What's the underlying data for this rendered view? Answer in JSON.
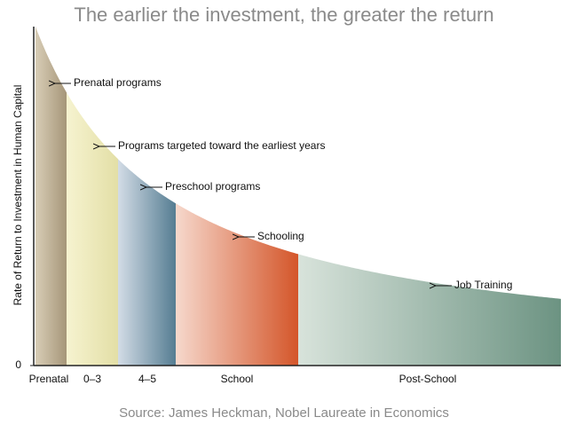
{
  "chart_data": {
    "type": "area",
    "title": "The earlier the investment, the greater the return",
    "ylabel": "Rate of Return to Investment in Human Capital",
    "yticks": [
      0
    ],
    "categories": [
      "Prenatal",
      "0–3",
      "4–5",
      "School",
      "Post-School"
    ],
    "annotations": [
      "Prenatal programs",
      "Programs targeted toward the earliest years",
      "Preschool programs",
      "Schooling",
      "Job Training"
    ],
    "source": "Source: James Heckman, Nobel Laureate in Economics"
  }
}
